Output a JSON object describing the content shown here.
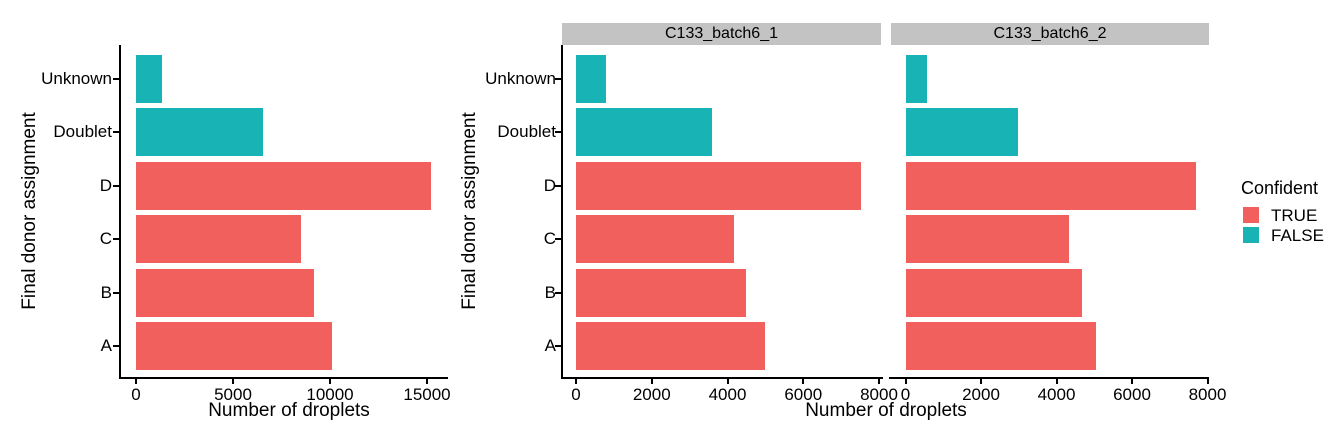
{
  "colors": {
    "confident_true": "#F2605D",
    "confident_false": "#18B3B5",
    "strip_bg": "#C3C3C3",
    "axis": "#000000"
  },
  "legend": {
    "title": "Confident",
    "entries": [
      {
        "label": "TRUE",
        "color_key": "confident_true"
      },
      {
        "label": "FALSE",
        "color_key": "confident_false"
      }
    ]
  },
  "chart_data": [
    {
      "type": "bar",
      "orientation": "horizontal",
      "xlabel": "Number of droplets",
      "ylabel": "Final donor assignment",
      "categories_top_to_bottom": [
        "Unknown",
        "Doublet",
        "D",
        "C",
        "B",
        "A"
      ],
      "values": [
        1320,
        6560,
        15200,
        8500,
        9170,
        10100
      ],
      "confident": [
        "FALSE",
        "FALSE",
        "TRUE",
        "TRUE",
        "TRUE",
        "TRUE"
      ],
      "xticks": [
        0,
        5000,
        10000,
        15000
      ],
      "xlim": [
        0,
        16000
      ],
      "grid": false,
      "legend_position": "none"
    },
    {
      "type": "bar",
      "orientation": "horizontal",
      "xlabel": "Number of droplets",
      "ylabel": "Final donor assignment",
      "categories_top_to_bottom": [
        "Unknown",
        "Doublet",
        "D",
        "C",
        "B",
        "A"
      ],
      "confident": [
        "FALSE",
        "FALSE",
        "TRUE",
        "TRUE",
        "TRUE",
        "TRUE"
      ],
      "xticks": [
        0,
        2000,
        4000,
        6000,
        8000
      ],
      "xlim": [
        0,
        8100
      ],
      "grid": false,
      "legend_position": "right",
      "facets": [
        {
          "label": "C133_batch6_1",
          "values": [
            800,
            3600,
            7520,
            4170,
            4500,
            5000
          ]
        },
        {
          "label": "C133_batch6_2",
          "values": [
            550,
            2960,
            7670,
            4330,
            4670,
            5030
          ]
        }
      ]
    }
  ]
}
